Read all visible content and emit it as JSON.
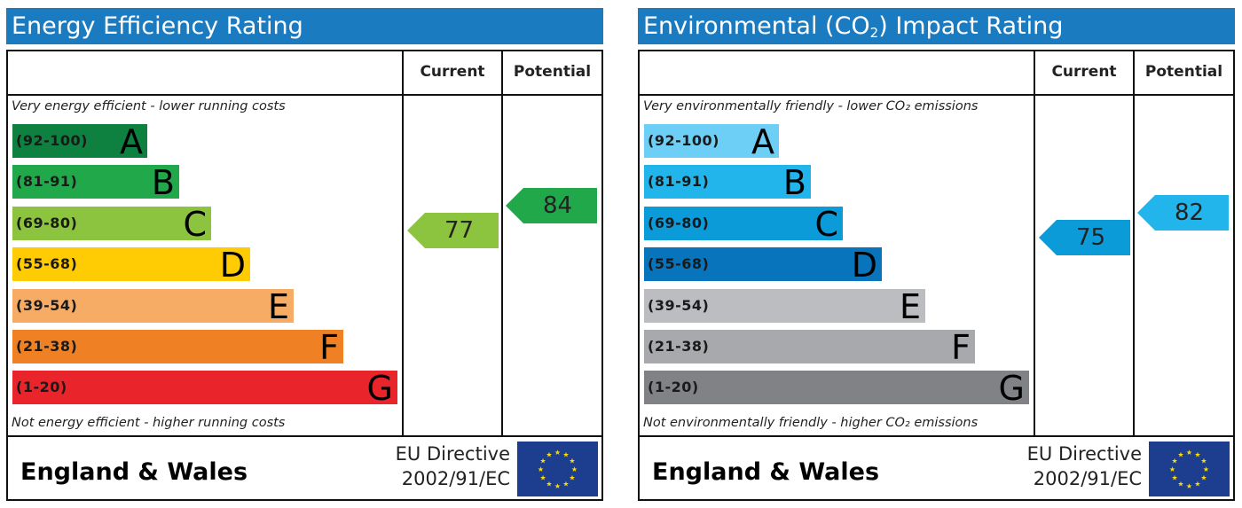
{
  "chart_data": [
    {
      "type": "bar",
      "title": "Energy Efficiency Rating",
      "columns": [
        "Current",
        "Potential"
      ],
      "top_note": "Very energy efficient - lower running costs",
      "bottom_note": "Not energy efficient - higher running costs",
      "bands": [
        {
          "range": "(92-100)",
          "letter": "A",
          "color": "#0e8140"
        },
        {
          "range": "(81-91)",
          "letter": "B",
          "color": "#20a84b"
        },
        {
          "range": "(69-80)",
          "letter": "C",
          "color": "#8cc43f"
        },
        {
          "range": "(55-68)",
          "letter": "D",
          "color": "#ffcc03"
        },
        {
          "range": "(39-54)",
          "letter": "E",
          "color": "#f6ac64"
        },
        {
          "range": "(21-38)",
          "letter": "F",
          "color": "#ef8023"
        },
        {
          "range": "(1-20)",
          "letter": "G",
          "color": "#e9242b"
        }
      ],
      "current": {
        "value": "77",
        "band": "C",
        "color": "#8cc43f"
      },
      "potential": {
        "value": "84",
        "band": "B",
        "color": "#20a84b"
      },
      "footer": {
        "region": "England & Wales",
        "directive_line1": "EU Directive",
        "directive_line2": "2002/91/EC"
      }
    },
    {
      "type": "bar",
      "title_pre": "Environmental (CO",
      "title_sub": "2",
      "title_post": ") Impact Rating",
      "columns": [
        "Current",
        "Potential"
      ],
      "top_note": "Very environmentally friendly - lower CO₂ emissions",
      "bottom_note": "Not environmentally friendly - higher CO₂ emissions",
      "bands": [
        {
          "range": "(92-100)",
          "letter": "A",
          "color": "#6dcff6"
        },
        {
          "range": "(81-91)",
          "letter": "B",
          "color": "#22b5eb"
        },
        {
          "range": "(69-80)",
          "letter": "C",
          "color": "#0b9bd9"
        },
        {
          "range": "(55-68)",
          "letter": "D",
          "color": "#0874bc"
        },
        {
          "range": "(39-54)",
          "letter": "E",
          "color": "#bbbdc0"
        },
        {
          "range": "(21-38)",
          "letter": "F",
          "color": "#a7a9ac"
        },
        {
          "range": "(1-20)",
          "letter": "G",
          "color": "#808285"
        }
      ],
      "current": {
        "value": "75",
        "band": "C",
        "color": "#0b9bd9"
      },
      "potential": {
        "value": "82",
        "band": "B",
        "color": "#22b5eb"
      },
      "footer": {
        "region": "England & Wales",
        "directive_line1": "EU Directive",
        "directive_line2": "2002/91/EC"
      }
    }
  ]
}
